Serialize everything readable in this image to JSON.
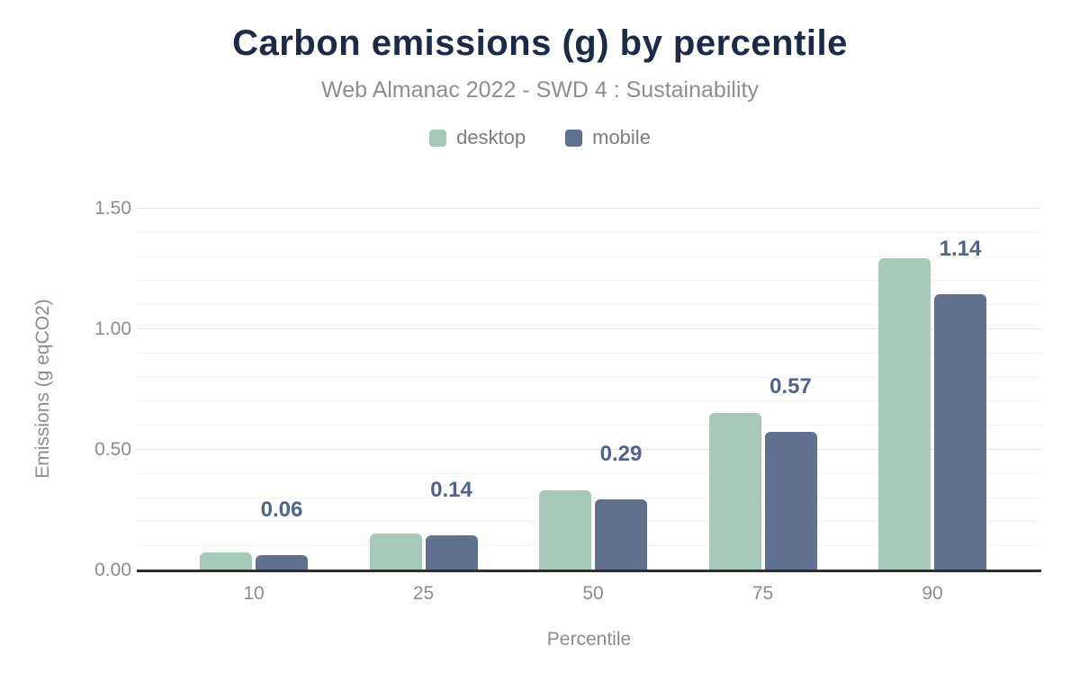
{
  "header": {
    "title": "Carbon emissions (g) by percentile",
    "subtitle": "Web Almanac 2022 - SWD 4 : Sustainability"
  },
  "chart_data": {
    "type": "bar",
    "title": "Carbon emissions (g) by percentile",
    "subtitle": "Web Almanac 2022 - SWD 4 : Sustainability",
    "categories": [
      "10",
      "25",
      "50",
      "75",
      "90"
    ],
    "series": [
      {
        "name": "desktop",
        "color": "#a6c9ba",
        "values": [
          0.07,
          0.15,
          0.33,
          0.65,
          1.29
        ]
      },
      {
        "name": "mobile",
        "color": "#5f718e",
        "values": [
          0.06,
          0.14,
          0.29,
          0.57,
          1.14
        ]
      }
    ],
    "bar_labels": {
      "labeled_series": "mobile",
      "values": [
        "0.06",
        "0.14",
        "0.29",
        "0.57",
        "1.14"
      ],
      "color": "#4d648c"
    },
    "xlabel": "Percentile",
    "ylabel": "Emissions (g eqCO2)",
    "ylim": [
      0,
      1.5
    ],
    "yticks": [
      {
        "value": 0.0,
        "label": "0.00"
      },
      {
        "value": 0.5,
        "label": "0.50"
      },
      {
        "value": 1.0,
        "label": "1.00"
      },
      {
        "value": 1.5,
        "label": "1.50"
      }
    ],
    "minor_grid_step": 0.1,
    "grid": true,
    "legend_position": "top"
  },
  "colors": {
    "title": "#1b2a48",
    "subtitle": "#8e8e8e",
    "axis_text": "#8c8c8c",
    "axis_line": "#2f2f2f",
    "desktop": "#a6c9ba",
    "mobile": "#5f718e",
    "bar_label": "#4d648c",
    "background": "#ffffff"
  }
}
